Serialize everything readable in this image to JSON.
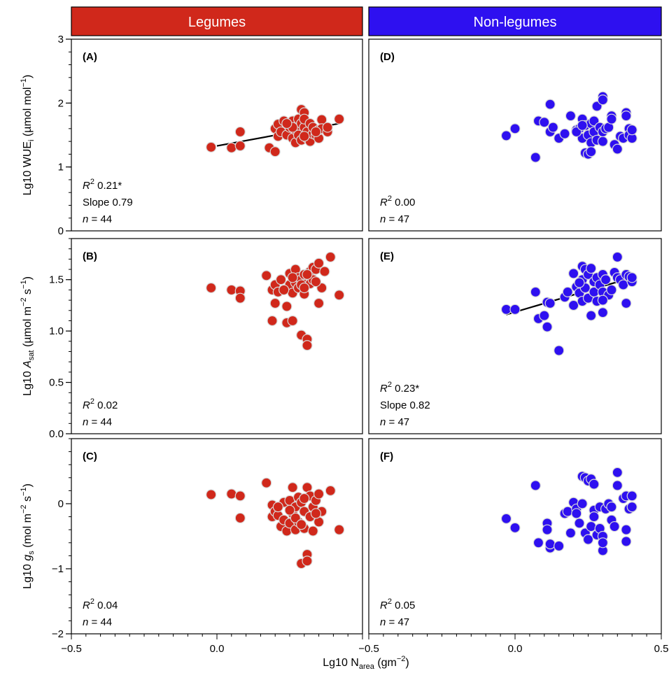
{
  "headers": [
    {
      "label": "Legumes",
      "color": "#d0281b"
    },
    {
      "label": "Non-legumes",
      "color": "#2e10f0"
    }
  ],
  "x_axis": {
    "title_prefix": "Lg10 N",
    "title_sub": "area",
    "title_suffix": " (gm",
    "title_sup": "−2",
    "title_end": ")",
    "range": [
      -0.5,
      0.5
    ],
    "ticks_left": [
      "−0.5",
      "0.0"
    ],
    "ticks_right": [
      "−0.5",
      "0.0",
      "0.5"
    ]
  },
  "rows": [
    {
      "id": "wue",
      "ylabel": {
        "prefix": "Lg10 WUE",
        "sub": "i",
        "suffix": " (µmol mol",
        "sup": "−1",
        "end": ")"
      },
      "ylim": [
        0,
        3
      ],
      "ticks": [
        {
          "v": 0,
          "label": "0"
        },
        {
          "v": 1,
          "label": "1"
        },
        {
          "v": 2,
          "label": "2"
        },
        {
          "v": 3,
          "label": "3"
        }
      ],
      "minor_step": 0.2
    },
    {
      "id": "asat",
      "ylabel": {
        "prefix": "Lg10 ",
        "ital": "A",
        "sub": "sat",
        "suffix": " (µmol m",
        "sup": "−2",
        "mid": " s",
        "sup2": "−1",
        "end": ")"
      },
      "ylim": [
        0,
        1.9
      ],
      "ticks": [
        {
          "v": 0,
          "label": "0.0"
        },
        {
          "v": 0.5,
          "label": "0.5"
        },
        {
          "v": 1.0,
          "label": "1.0"
        },
        {
          "v": 1.5,
          "label": "1.5"
        }
      ],
      "minor_step": 0.1
    },
    {
      "id": "gs",
      "ylabel": {
        "prefix": "Lg10 ",
        "ital": "g",
        "sub": "s",
        "suffix": " (mol m",
        "sup": "−2",
        "mid": " s",
        "sup2": "−1",
        "end": ")"
      },
      "ylim": [
        -2,
        1
      ],
      "ticks": [
        {
          "v": -2,
          "label": "−2"
        },
        {
          "v": -1,
          "label": "−1"
        },
        {
          "v": 0,
          "label": "0"
        }
      ],
      "minor_step": 0.2
    }
  ],
  "chart_data": [
    {
      "type": "scatter",
      "panel": "A",
      "group": "Legumes",
      "variable": "Lg10 WUEi",
      "letter": "(A)",
      "stats": [
        {
          "r2": "0.21*"
        },
        {
          "text": "Slope 0.79"
        },
        {
          "n": "= 44"
        }
      ],
      "fit": {
        "x": [
          0.0,
          0.42
        ],
        "y": [
          1.33,
          1.68
        ]
      },
      "xlim": [
        -0.5,
        0.5
      ],
      "ylim": [
        0,
        3
      ],
      "points": [
        [
          -0.02,
          1.31
        ],
        [
          0.05,
          1.3
        ],
        [
          0.08,
          1.55
        ],
        [
          0.08,
          1.33
        ],
        [
          0.18,
          1.3
        ],
        [
          0.2,
          1.24
        ],
        [
          0.2,
          1.6
        ],
        [
          0.21,
          1.48
        ],
        [
          0.21,
          1.67
        ],
        [
          0.22,
          1.55
        ],
        [
          0.23,
          1.72
        ],
        [
          0.24,
          1.5
        ],
        [
          0.25,
          1.62
        ],
        [
          0.26,
          1.72
        ],
        [
          0.26,
          1.45
        ],
        [
          0.27,
          1.38
        ],
        [
          0.27,
          1.58
        ],
        [
          0.28,
          1.65
        ],
        [
          0.28,
          1.75
        ],
        [
          0.28,
          1.5
        ],
        [
          0.29,
          1.68
        ],
        [
          0.29,
          1.42
        ],
        [
          0.29,
          1.9
        ],
        [
          0.3,
          1.85
        ],
        [
          0.3,
          1.62
        ],
        [
          0.3,
          1.75
        ],
        [
          0.31,
          1.55
        ],
        [
          0.31,
          1.45
        ],
        [
          0.32,
          1.68
        ],
        [
          0.32,
          1.4
        ],
        [
          0.33,
          1.52
        ],
        [
          0.33,
          1.62
        ],
        [
          0.34,
          1.5
        ],
        [
          0.35,
          1.45
        ],
        [
          0.35,
          1.58
        ],
        [
          0.36,
          1.74
        ],
        [
          0.36,
          1.6
        ],
        [
          0.38,
          1.55
        ],
        [
          0.38,
          1.62
        ],
        [
          0.42,
          1.75
        ],
        [
          0.26,
          1.62
        ],
        [
          0.24,
          1.68
        ],
        [
          0.3,
          1.48
        ],
        [
          0.34,
          1.55
        ]
      ]
    },
    {
      "type": "scatter",
      "panel": "B",
      "group": "Legumes",
      "variable": "Lg10 Asat",
      "letter": "(B)",
      "stats": [
        {
          "r2": "0.02"
        },
        {
          "n": "= 44"
        }
      ],
      "fit": null,
      "xlim": [
        -0.5,
        0.5
      ],
      "ylim": [
        0,
        1.9
      ],
      "points": [
        [
          -0.02,
          1.42
        ],
        [
          0.05,
          1.4
        ],
        [
          0.08,
          1.39
        ],
        [
          0.08,
          1.32
        ],
        [
          0.17,
          1.54
        ],
        [
          0.19,
          1.4
        ],
        [
          0.19,
          1.1
        ],
        [
          0.2,
          1.45
        ],
        [
          0.2,
          1.27
        ],
        [
          0.21,
          1.38
        ],
        [
          0.22,
          1.5
        ],
        [
          0.24,
          1.24
        ],
        [
          0.24,
          1.08
        ],
        [
          0.25,
          1.45
        ],
        [
          0.25,
          1.56
        ],
        [
          0.26,
          1.37
        ],
        [
          0.26,
          1.1
        ],
        [
          0.27,
          1.6
        ],
        [
          0.27,
          1.47
        ],
        [
          0.28,
          1.42
        ],
        [
          0.28,
          1.52
        ],
        [
          0.29,
          0.96
        ],
        [
          0.29,
          1.5
        ],
        [
          0.3,
          1.36
        ],
        [
          0.3,
          1.55
        ],
        [
          0.31,
          0.92
        ],
        [
          0.31,
          0.86
        ],
        [
          0.32,
          1.46
        ],
        [
          0.32,
          1.58
        ],
        [
          0.33,
          1.5
        ],
        [
          0.33,
          1.62
        ],
        [
          0.34,
          1.6
        ],
        [
          0.35,
          1.66
        ],
        [
          0.35,
          1.27
        ],
        [
          0.36,
          1.42
        ],
        [
          0.37,
          1.58
        ],
        [
          0.39,
          1.72
        ],
        [
          0.42,
          1.35
        ],
        [
          0.29,
          1.45
        ],
        [
          0.31,
          1.55
        ],
        [
          0.26,
          1.52
        ],
        [
          0.23,
          1.4
        ],
        [
          0.3,
          1.42
        ],
        [
          0.34,
          1.48
        ]
      ]
    },
    {
      "type": "scatter",
      "panel": "C",
      "group": "Legumes",
      "variable": "Lg10 gs",
      "letter": "(C)",
      "stats": [
        {
          "r2": "0.04"
        },
        {
          "n": "= 44"
        }
      ],
      "fit": null,
      "xlim": [
        -0.5,
        0.5
      ],
      "ylim": [
        -2,
        1
      ],
      "points": [
        [
          -0.02,
          0.14
        ],
        [
          0.05,
          0.15
        ],
        [
          0.08,
          0.12
        ],
        [
          0.08,
          -0.22
        ],
        [
          0.17,
          0.32
        ],
        [
          0.19,
          -0.02
        ],
        [
          0.19,
          -0.2
        ],
        [
          0.2,
          -0.12
        ],
        [
          0.21,
          -0.18
        ],
        [
          0.22,
          -0.35
        ],
        [
          0.23,
          0.02
        ],
        [
          0.23,
          -0.25
        ],
        [
          0.24,
          -0.42
        ],
        [
          0.25,
          0.05
        ],
        [
          0.25,
          -0.3
        ],
        [
          0.26,
          0.25
        ],
        [
          0.26,
          -0.15
        ],
        [
          0.27,
          -0.4
        ],
        [
          0.27,
          -0.05
        ],
        [
          0.28,
          0.1
        ],
        [
          0.28,
          -0.28
        ],
        [
          0.29,
          -0.92
        ],
        [
          0.29,
          0.02
        ],
        [
          0.3,
          -0.12
        ],
        [
          0.3,
          -0.38
        ],
        [
          0.31,
          -0.78
        ],
        [
          0.31,
          -0.88
        ],
        [
          0.31,
          0.25
        ],
        [
          0.32,
          -0.2
        ],
        [
          0.32,
          0.12
        ],
        [
          0.33,
          -0.05
        ],
        [
          0.34,
          0.05
        ],
        [
          0.35,
          0.15
        ],
        [
          0.35,
          -0.28
        ],
        [
          0.36,
          -0.12
        ],
        [
          0.39,
          0.2
        ],
        [
          0.42,
          -0.4
        ],
        [
          0.27,
          -0.22
        ],
        [
          0.29,
          -0.32
        ],
        [
          0.33,
          -0.42
        ],
        [
          0.3,
          0.08
        ],
        [
          0.25,
          -0.1
        ],
        [
          0.21,
          -0.05
        ],
        [
          0.34,
          -0.15
        ]
      ]
    },
    {
      "type": "scatter",
      "panel": "D",
      "group": "Non-legumes",
      "variable": "Lg10 WUEi",
      "letter": "(D)",
      "stats": [
        {
          "r2": "0.00"
        },
        {
          "n": "= 47"
        }
      ],
      "fit": null,
      "xlim": [
        -0.5,
        0.5
      ],
      "ylim": [
        0,
        3
      ],
      "points": [
        [
          -0.03,
          1.49
        ],
        [
          0.0,
          1.6
        ],
        [
          0.07,
          1.15
        ],
        [
          0.08,
          1.72
        ],
        [
          0.1,
          1.7
        ],
        [
          0.12,
          1.98
        ],
        [
          0.12,
          1.55
        ],
        [
          0.13,
          1.62
        ],
        [
          0.15,
          1.45
        ],
        [
          0.17,
          1.52
        ],
        [
          0.19,
          1.8
        ],
        [
          0.21,
          1.58
        ],
        [
          0.22,
          1.6
        ],
        [
          0.23,
          1.75
        ],
        [
          0.23,
          1.45
        ],
        [
          0.24,
          1.22
        ],
        [
          0.24,
          1.65
        ],
        [
          0.25,
          1.2
        ],
        [
          0.25,
          1.5
        ],
        [
          0.26,
          1.38
        ],
        [
          0.26,
          1.68
        ],
        [
          0.26,
          1.24
        ],
        [
          0.27,
          1.72
        ],
        [
          0.27,
          1.55
        ],
        [
          0.28,
          1.95
        ],
        [
          0.28,
          1.42
        ],
        [
          0.29,
          1.62
        ],
        [
          0.3,
          2.1
        ],
        [
          0.3,
          2.05
        ],
        [
          0.3,
          1.4
        ],
        [
          0.3,
          1.55
        ],
        [
          0.31,
          1.6
        ],
        [
          0.32,
          1.62
        ],
        [
          0.33,
          1.8
        ],
        [
          0.34,
          1.35
        ],
        [
          0.35,
          1.28
        ],
        [
          0.36,
          1.48
        ],
        [
          0.37,
          1.45
        ],
        [
          0.38,
          1.85
        ],
        [
          0.38,
          1.8
        ],
        [
          0.39,
          1.6
        ],
        [
          0.39,
          1.5
        ],
        [
          0.4,
          1.45
        ],
        [
          0.4,
          1.58
        ],
        [
          0.21,
          1.55
        ],
        [
          0.33,
          1.75
        ],
        [
          0.23,
          1.65
        ]
      ]
    },
    {
      "type": "scatter",
      "panel": "E",
      "group": "Non-legumes",
      "variable": "Lg10 Asat",
      "letter": "(E)",
      "stats": [
        {
          "r2": "0.23*"
        },
        {
          "text": "Slope 0.82"
        },
        {
          "n": "= 47"
        }
      ],
      "fit": {
        "x": [
          -0.03,
          0.4
        ],
        "y": [
          1.16,
          1.52
        ]
      },
      "xlim": [
        -0.5,
        0.5
      ],
      "ylim": [
        0,
        1.9
      ],
      "points": [
        [
          -0.03,
          1.21
        ],
        [
          0.0,
          1.21
        ],
        [
          0.07,
          1.38
        ],
        [
          0.08,
          1.12
        ],
        [
          0.1,
          1.15
        ],
        [
          0.11,
          1.28
        ],
        [
          0.11,
          1.04
        ],
        [
          0.12,
          1.27
        ],
        [
          0.15,
          0.81
        ],
        [
          0.17,
          1.33
        ],
        [
          0.18,
          1.38
        ],
        [
          0.2,
          1.56
        ],
        [
          0.2,
          1.25
        ],
        [
          0.21,
          1.43
        ],
        [
          0.22,
          1.37
        ],
        [
          0.23,
          1.63
        ],
        [
          0.23,
          1.5
        ],
        [
          0.23,
          1.29
        ],
        [
          0.24,
          1.6
        ],
        [
          0.24,
          1.42
        ],
        [
          0.25,
          1.55
        ],
        [
          0.25,
          1.32
        ],
        [
          0.26,
          1.15
        ],
        [
          0.26,
          1.61
        ],
        [
          0.27,
          1.48
        ],
        [
          0.27,
          1.38
        ],
        [
          0.28,
          1.52
        ],
        [
          0.28,
          1.29
        ],
        [
          0.29,
          1.45
        ],
        [
          0.3,
          1.55
        ],
        [
          0.3,
          1.18
        ],
        [
          0.3,
          1.38
        ],
        [
          0.31,
          1.5
        ],
        [
          0.32,
          1.35
        ],
        [
          0.33,
          1.4
        ],
        [
          0.34,
          1.57
        ],
        [
          0.35,
          1.72
        ],
        [
          0.35,
          1.52
        ],
        [
          0.36,
          1.5
        ],
        [
          0.37,
          1.45
        ],
        [
          0.38,
          1.55
        ],
        [
          0.38,
          1.27
        ],
        [
          0.39,
          1.53
        ],
        [
          0.4,
          1.48
        ],
        [
          0.4,
          1.52
        ],
        [
          0.22,
          1.47
        ],
        [
          0.3,
          1.3
        ]
      ]
    },
    {
      "type": "scatter",
      "panel": "F",
      "group": "Non-legumes",
      "variable": "Lg10 gs",
      "letter": "(F)",
      "stats": [
        {
          "r2": "0.05"
        },
        {
          "n": "= 47"
        }
      ],
      "fit": null,
      "xlim": [
        -0.5,
        0.5
      ],
      "ylim": [
        -2,
        1
      ],
      "points": [
        [
          -0.03,
          -0.23
        ],
        [
          0.0,
          -0.37
        ],
        [
          0.07,
          0.28
        ],
        [
          0.08,
          -0.6
        ],
        [
          0.11,
          -0.3
        ],
        [
          0.11,
          -0.4
        ],
        [
          0.12,
          -0.68
        ],
        [
          0.12,
          -0.62
        ],
        [
          0.15,
          -0.65
        ],
        [
          0.17,
          -0.15
        ],
        [
          0.18,
          -0.12
        ],
        [
          0.19,
          -0.45
        ],
        [
          0.2,
          0.02
        ],
        [
          0.21,
          -0.08
        ],
        [
          0.22,
          -0.3
        ],
        [
          0.23,
          0.42
        ],
        [
          0.23,
          -0.0
        ],
        [
          0.24,
          0.4
        ],
        [
          0.24,
          -0.45
        ],
        [
          0.25,
          0.35
        ],
        [
          0.25,
          -0.55
        ],
        [
          0.26,
          0.38
        ],
        [
          0.26,
          -0.35
        ],
        [
          0.27,
          0.3
        ],
        [
          0.27,
          -0.1
        ],
        [
          0.28,
          -0.48
        ],
        [
          0.29,
          -0.38
        ],
        [
          0.29,
          -0.05
        ],
        [
          0.3,
          -0.72
        ],
        [
          0.3,
          -0.5
        ],
        [
          0.3,
          -0.6
        ],
        [
          0.31,
          -0.08
        ],
        [
          0.32,
          0.0
        ],
        [
          0.33,
          -0.25
        ],
        [
          0.34,
          -0.35
        ],
        [
          0.35,
          0.48
        ],
        [
          0.35,
          0.28
        ],
        [
          0.37,
          0.08
        ],
        [
          0.38,
          0.12
        ],
        [
          0.38,
          -0.4
        ],
        [
          0.38,
          -0.58
        ],
        [
          0.39,
          -0.08
        ],
        [
          0.4,
          0.12
        ],
        [
          0.4,
          -0.05
        ],
        [
          0.21,
          -0.15
        ],
        [
          0.33,
          -0.05
        ],
        [
          0.27,
          -0.2
        ]
      ]
    }
  ]
}
